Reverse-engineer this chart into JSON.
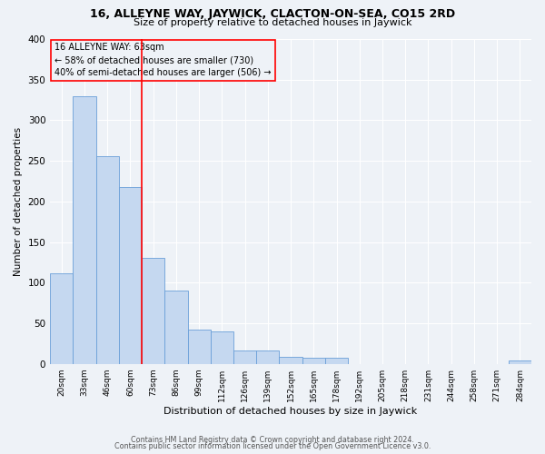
{
  "title": "16, ALLEYNE WAY, JAYWICK, CLACTON-ON-SEA, CO15 2RD",
  "subtitle": "Size of property relative to detached houses in Jaywick",
  "xlabel": "Distribution of detached houses by size in Jaywick",
  "ylabel": "Number of detached properties",
  "bin_labels": [
    "20sqm",
    "33sqm",
    "46sqm",
    "60sqm",
    "73sqm",
    "86sqm",
    "99sqm",
    "112sqm",
    "126sqm",
    "139sqm",
    "152sqm",
    "165sqm",
    "178sqm",
    "192sqm",
    "205sqm",
    "218sqm",
    "231sqm",
    "244sqm",
    "258sqm",
    "271sqm",
    "284sqm"
  ],
  "bar_values": [
    111,
    330,
    256,
    218,
    130,
    90,
    42,
    40,
    17,
    16,
    9,
    8,
    8,
    0,
    0,
    0,
    0,
    0,
    0,
    0,
    4
  ],
  "bar_color": "#c5d8f0",
  "bar_edgecolor": "#6a9fd8",
  "ylim": [
    0,
    400
  ],
  "yticks": [
    0,
    50,
    100,
    150,
    200,
    250,
    300,
    350,
    400
  ],
  "vline_bin": 3,
  "vline_color": "red",
  "annotation_title": "16 ALLEYNE WAY: 63sqm",
  "annotation_line1": "← 58% of detached houses are smaller (730)",
  "annotation_line2": "40% of semi-detached houses are larger (506) →",
  "annotation_box_color": "red",
  "footer_line1": "Contains HM Land Registry data © Crown copyright and database right 2024.",
  "footer_line2": "Contains public sector information licensed under the Open Government Licence v3.0.",
  "background_color": "#eef2f7",
  "grid_color": "white"
}
